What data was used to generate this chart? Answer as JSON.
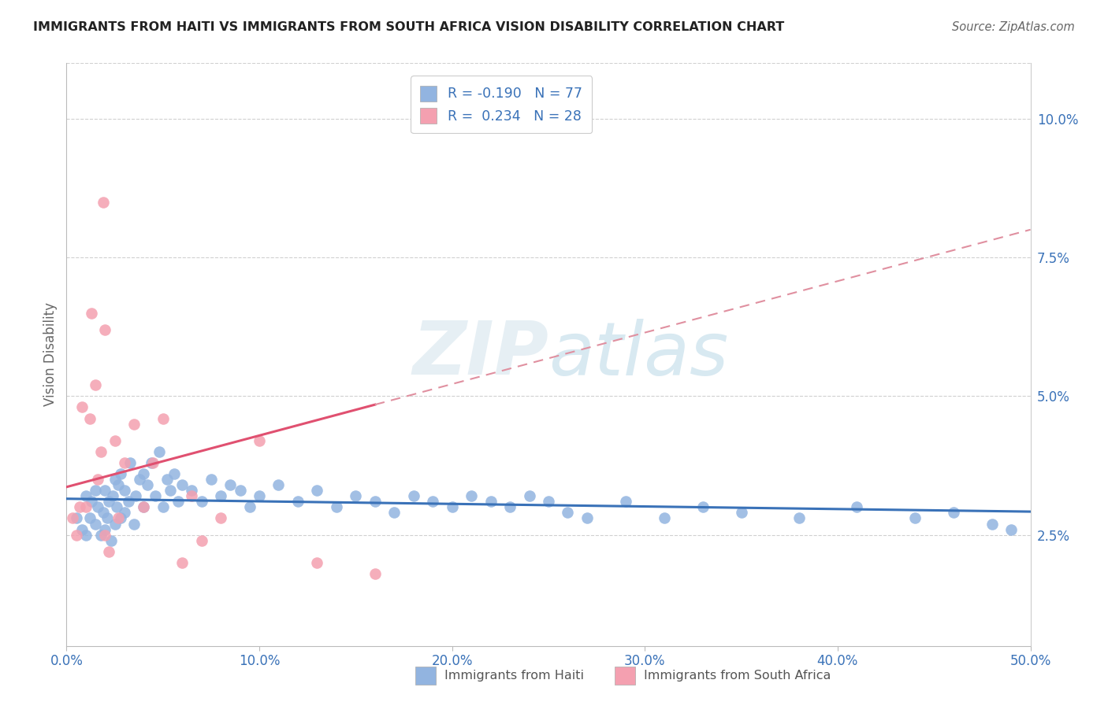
{
  "title": "IMMIGRANTS FROM HAITI VS IMMIGRANTS FROM SOUTH AFRICA VISION DISABILITY CORRELATION CHART",
  "source": "Source: ZipAtlas.com",
  "ylabel": "Vision Disability",
  "xlabel_ticks": [
    "0.0%",
    "10.0%",
    "20.0%",
    "30.0%",
    "40.0%",
    "50.0%"
  ],
  "xlabel_vals": [
    0.0,
    0.1,
    0.2,
    0.3,
    0.4,
    0.5
  ],
  "ylabel_ticks": [
    "2.5%",
    "5.0%",
    "7.5%",
    "10.0%"
  ],
  "ylabel_vals": [
    0.025,
    0.05,
    0.075,
    0.1
  ],
  "xlim": [
    0.0,
    0.5
  ],
  "ylim": [
    0.005,
    0.11
  ],
  "haiti_R": -0.19,
  "haiti_N": 77,
  "safrica_R": 0.234,
  "safrica_N": 28,
  "haiti_color": "#92b4e0",
  "safrica_color": "#f4a0b0",
  "haiti_line_color": "#3a72b8",
  "safrica_line_color": "#e05070",
  "safrica_dash_color": "#e090a0",
  "legend_color": "#3a72b8",
  "watermark_color": "#d8e8f0",
  "background_color": "#ffffff",
  "grid_color": "#d0d0d0",
  "haiti_x": [
    0.005,
    0.008,
    0.01,
    0.01,
    0.012,
    0.013,
    0.015,
    0.015,
    0.016,
    0.018,
    0.019,
    0.02,
    0.02,
    0.021,
    0.022,
    0.023,
    0.024,
    0.025,
    0.025,
    0.026,
    0.027,
    0.028,
    0.028,
    0.03,
    0.03,
    0.032,
    0.033,
    0.035,
    0.036,
    0.038,
    0.04,
    0.04,
    0.042,
    0.044,
    0.046,
    0.048,
    0.05,
    0.052,
    0.054,
    0.056,
    0.058,
    0.06,
    0.065,
    0.07,
    0.075,
    0.08,
    0.085,
    0.09,
    0.095,
    0.1,
    0.11,
    0.12,
    0.13,
    0.14,
    0.15,
    0.16,
    0.17,
    0.18,
    0.19,
    0.2,
    0.21,
    0.22,
    0.23,
    0.24,
    0.25,
    0.26,
    0.27,
    0.29,
    0.31,
    0.33,
    0.35,
    0.38,
    0.41,
    0.44,
    0.46,
    0.48,
    0.49
  ],
  "haiti_y": [
    0.028,
    0.026,
    0.025,
    0.032,
    0.028,
    0.031,
    0.027,
    0.033,
    0.03,
    0.025,
    0.029,
    0.026,
    0.033,
    0.028,
    0.031,
    0.024,
    0.032,
    0.027,
    0.035,
    0.03,
    0.034,
    0.028,
    0.036,
    0.029,
    0.033,
    0.031,
    0.038,
    0.027,
    0.032,
    0.035,
    0.036,
    0.03,
    0.034,
    0.038,
    0.032,
    0.04,
    0.03,
    0.035,
    0.033,
    0.036,
    0.031,
    0.034,
    0.033,
    0.031,
    0.035,
    0.032,
    0.034,
    0.033,
    0.03,
    0.032,
    0.034,
    0.031,
    0.033,
    0.03,
    0.032,
    0.031,
    0.029,
    0.032,
    0.031,
    0.03,
    0.032,
    0.031,
    0.03,
    0.032,
    0.031,
    0.029,
    0.028,
    0.031,
    0.028,
    0.03,
    0.029,
    0.028,
    0.03,
    0.028,
    0.029,
    0.027,
    0.026
  ],
  "safrica_x": [
    0.003,
    0.005,
    0.007,
    0.008,
    0.01,
    0.012,
    0.013,
    0.015,
    0.016,
    0.018,
    0.019,
    0.02,
    0.02,
    0.022,
    0.025,
    0.027,
    0.03,
    0.035,
    0.04,
    0.045,
    0.05,
    0.06,
    0.065,
    0.07,
    0.08,
    0.1,
    0.13,
    0.16
  ],
  "safrica_y": [
    0.028,
    0.025,
    0.03,
    0.048,
    0.03,
    0.046,
    0.065,
    0.052,
    0.035,
    0.04,
    0.085,
    0.062,
    0.025,
    0.022,
    0.042,
    0.028,
    0.038,
    0.045,
    0.03,
    0.038,
    0.046,
    0.02,
    0.032,
    0.024,
    0.028,
    0.042,
    0.02,
    0.018
  ]
}
